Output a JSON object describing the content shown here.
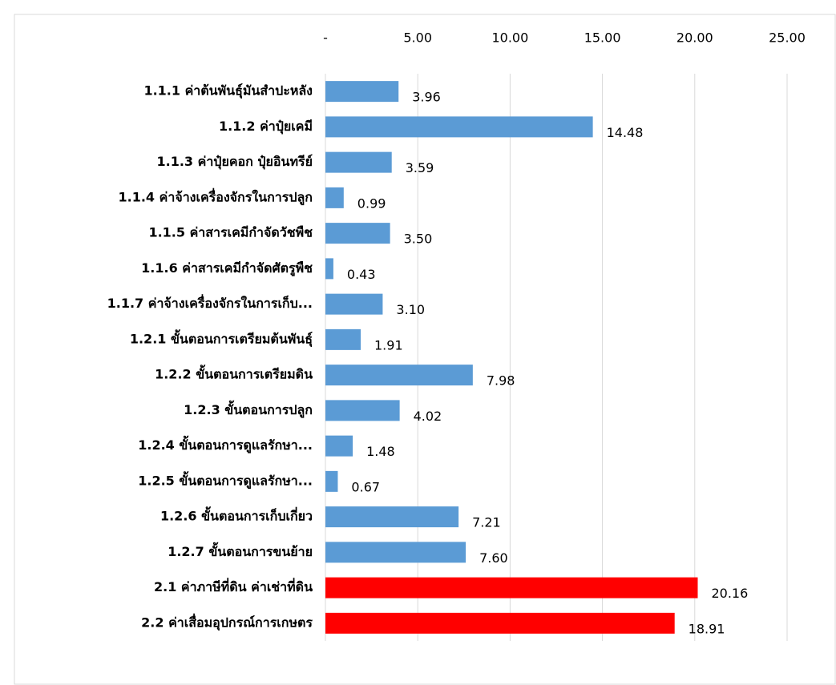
{
  "chart_data": {
    "type": "bar",
    "orientation": "horizontal",
    "categories": [
      "1.1.1 ค่าต้นพันธุ์มันสำปะหลัง",
      "1.1.2 ค่าปุ๋ยเคมี",
      "1.1.3 ค่าปุ๋ยคอก ปุ๋ยอินทรีย์",
      "1.1.4 ค่าจ้างเครื่องจักรในการปลูก",
      "1.1.5 ค่าสารเคมีกำจัดวัชพืช",
      "1.1.6 ค่าสารเคมีกำจัดศัตรูพืช",
      "1.1.7 ค่าจ้างเครื่องจักรในการเก็บ...",
      "1.2.1 ขั้นตอนการเตรียมต้นพันธุ์",
      "1.2.2 ขั้นตอนการเตรียมดิน",
      "1.2.3 ขั้นตอนการปลูก",
      "1.2.4 ขั้นตอนการดูแลรักษา...",
      "1.2.5 ขั้นตอนการดูแลรักษา...",
      "1.2.6 ขั้นตอนการเก็บเกี่ยว",
      "1.2.7 ขั้นตอนการขนย้าย",
      "2.1 ค่าภาษีที่ดิน ค่าเช่าที่ดิน",
      "2.2 ค่าเสื่อมอุปกรณ์การเกษตร"
    ],
    "values": [
      3.96,
      14.48,
      3.59,
      0.99,
      3.5,
      0.43,
      3.1,
      1.91,
      7.98,
      4.02,
      1.48,
      0.67,
      7.21,
      7.6,
      20.16,
      18.91
    ],
    "value_labels": [
      "3.96",
      "14.48",
      "3.59",
      "0.99",
      "3.50",
      "0.43",
      "3.10",
      "1.91",
      "7.98",
      "4.02",
      "1.48",
      "0.67",
      "7.21",
      "7.60",
      "20.16",
      "18.91"
    ],
    "colors": [
      "#5b9bd5",
      "#5b9bd5",
      "#5b9bd5",
      "#5b9bd5",
      "#5b9bd5",
      "#5b9bd5",
      "#5b9bd5",
      "#5b9bd5",
      "#5b9bd5",
      "#5b9bd5",
      "#5b9bd5",
      "#5b9bd5",
      "#5b9bd5",
      "#5b9bd5",
      "#ff0000",
      "#ff0000"
    ],
    "xlim": [
      0,
      25
    ],
    "xticks": [
      {
        "value": 0,
        "label": "-"
      },
      {
        "value": 5,
        "label": "5.00"
      },
      {
        "value": 10,
        "label": "10.00"
      },
      {
        "value": 15,
        "label": "15.00"
      },
      {
        "value": 20,
        "label": "20.00"
      },
      {
        "value": 25,
        "label": "25.00"
      }
    ],
    "grid": true
  }
}
